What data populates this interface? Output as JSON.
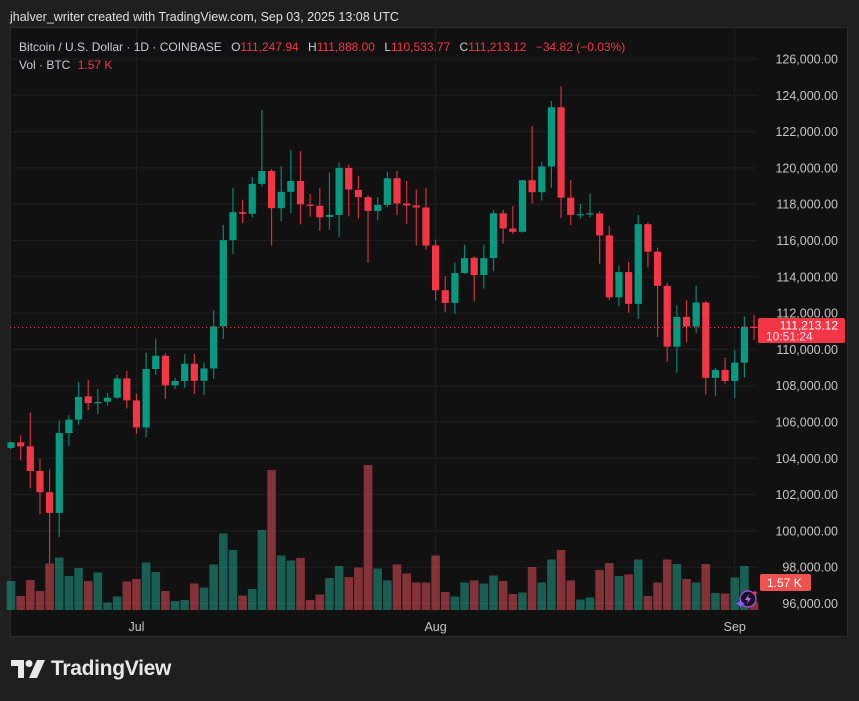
{
  "caption": "jhalver_writer created with TradingView.com, Sep 03, 2025 13:08 UTC",
  "legend": {
    "symbol": "Bitcoin / U.S. Dollar · 1D · COINBASE",
    "o_label": "O",
    "o_value": "111,247.94",
    "h_label": "H",
    "h_value": "111,888.00",
    "l_label": "L",
    "l_value": "110,533.77",
    "c_label": "C",
    "c_value": "111,213.12",
    "change": "−34.82 (−0.03%)",
    "vol_label": "Vol · BTC",
    "vol_value": "1.57 K"
  },
  "price_label": {
    "price": "111,213.12",
    "countdown": "10:51:24"
  },
  "volume_label": "1.57 K",
  "logo_text": "TradingView",
  "colors": {
    "up": "#089981",
    "down": "#f23645",
    "background": "#111111"
  },
  "icons": {
    "assistant": "lightning-sparkle-icon",
    "logo": "tradingview-logo-icon"
  },
  "chart_data": {
    "type": "candlestick",
    "title": "Bitcoin / U.S. Dollar · 1D · COINBASE",
    "y_ticks": [
      "126,000.00",
      "124,000.00",
      "122,000.00",
      "120,000.00",
      "118,000.00",
      "116,000.00",
      "114,000.00",
      "112,000.00",
      "110,000.00",
      "108,000.00",
      "106,000.00",
      "104,000.00",
      "102,000.00",
      "100,000.00",
      "98,000.00",
      "96,000.00"
    ],
    "x_ticks": [
      {
        "label": "Jul",
        "date": "2025-07-01"
      },
      {
        "label": "Aug",
        "date": "2025-08-01"
      },
      {
        "label": "Sep",
        "date": "2025-09-01"
      }
    ],
    "ylim": [
      96000,
      126000
    ],
    "current_price": 111213.12,
    "volume_unit": "K BTC",
    "columns": [
      "date",
      "open",
      "high",
      "low",
      "close",
      "volume"
    ],
    "candles": [
      [
        "2025-06-18",
        104570,
        104900,
        104500,
        104880,
        5.8
      ],
      [
        "2025-06-19",
        104880,
        105270,
        103890,
        104660,
        2.8
      ],
      [
        "2025-06-20",
        104660,
        106530,
        102350,
        103300,
        6.0
      ],
      [
        "2025-06-21",
        103300,
        103980,
        100920,
        102130,
        3.8
      ],
      [
        "2025-06-22",
        102130,
        103380,
        98200,
        100990,
        9.3
      ],
      [
        "2025-06-23",
        100990,
        106090,
        99670,
        105390,
        10.5
      ],
      [
        "2025-06-24",
        105390,
        106370,
        104680,
        106130,
        6.8
      ],
      [
        "2025-06-25",
        106130,
        108200,
        105850,
        107380,
        8.4
      ],
      [
        "2025-06-26",
        107410,
        108330,
        106640,
        107040,
        5.8
      ],
      [
        "2025-06-27",
        107030,
        107820,
        106440,
        107100,
        7.5
      ],
      [
        "2025-06-28",
        107120,
        107610,
        106900,
        107340,
        1.5
      ],
      [
        "2025-06-29",
        107340,
        108590,
        107270,
        108400,
        2.7
      ],
      [
        "2025-06-30",
        108400,
        108820,
        106750,
        107190,
        5.7
      ],
      [
        "2025-07-01",
        107190,
        107560,
        105340,
        105700,
        6.2
      ],
      [
        "2025-07-02",
        105700,
        109830,
        105150,
        108920,
        9.5
      ],
      [
        "2025-07-03",
        108920,
        110600,
        108600,
        109650,
        7.6
      ],
      [
        "2025-07-04",
        109650,
        109800,
        107280,
        108020,
        3.8
      ],
      [
        "2025-07-05",
        108020,
        108440,
        107830,
        108260,
        1.8
      ],
      [
        "2025-07-06",
        108260,
        109740,
        107890,
        109210,
        2.0
      ],
      [
        "2025-07-07",
        109210,
        109740,
        107540,
        108270,
        5.3
      ],
      [
        "2025-07-08",
        108270,
        109270,
        107490,
        108950,
        4.5
      ],
      [
        "2025-07-09",
        108950,
        112160,
        108370,
        111270,
        9.1
      ],
      [
        "2025-07-10",
        111270,
        116860,
        110570,
        116020,
        15.3
      ],
      [
        "2025-07-11",
        116020,
        118900,
        115250,
        117560,
        12.0
      ],
      [
        "2025-07-12",
        117560,
        118240,
        116950,
        117470,
        2.9
      ],
      [
        "2025-07-13",
        117470,
        119490,
        117270,
        119120,
        4.2
      ],
      [
        "2025-07-14",
        119120,
        123190,
        118970,
        119830,
        16.0
      ],
      [
        "2025-07-15",
        119830,
        119940,
        115710,
        117780,
        28.0
      ],
      [
        "2025-07-16",
        117780,
        120110,
        117050,
        118680,
        10.9
      ],
      [
        "2025-07-17",
        118680,
        120990,
        117490,
        119280,
        9.9
      ],
      [
        "2025-07-18",
        119280,
        120920,
        116900,
        118000,
        10.4
      ],
      [
        "2025-07-19",
        117980,
        118570,
        117320,
        117910,
        2.0
      ],
      [
        "2025-07-20",
        117910,
        118900,
        116530,
        117280,
        3.1
      ],
      [
        "2025-07-21",
        117300,
        119730,
        116590,
        117410,
        6.4
      ],
      [
        "2025-07-22",
        117410,
        120290,
        116180,
        120000,
        8.8
      ],
      [
        "2025-07-23",
        120000,
        120180,
        117340,
        118810,
        6.6
      ],
      [
        "2025-07-24",
        118790,
        119560,
        117210,
        118390,
        8.5
      ],
      [
        "2025-07-25",
        118390,
        118500,
        114770,
        117630,
        29.0
      ],
      [
        "2025-07-26",
        117630,
        118390,
        117120,
        117960,
        8.3
      ],
      [
        "2025-07-27",
        117960,
        119780,
        117830,
        119430,
        5.9
      ],
      [
        "2025-07-28",
        119430,
        119830,
        117390,
        118040,
        9.1
      ],
      [
        "2025-07-29",
        118040,
        119280,
        116920,
        117930,
        7.3
      ],
      [
        "2025-07-30",
        117930,
        118810,
        115720,
        117820,
        5.5
      ],
      [
        "2025-07-31",
        117820,
        118900,
        115500,
        115720,
        5.5
      ],
      [
        "2025-08-01",
        115730,
        116040,
        112690,
        113260,
        10.9
      ],
      [
        "2025-08-02",
        113260,
        114030,
        112050,
        112560,
        3.6
      ],
      [
        "2025-08-03",
        112560,
        114790,
        111940,
        114210,
        2.7
      ],
      [
        "2025-08-04",
        114210,
        115770,
        114150,
        115030,
        5.5
      ],
      [
        "2025-08-05",
        115050,
        115120,
        112650,
        114100,
        5.9
      ],
      [
        "2025-08-06",
        114100,
        115770,
        113350,
        115030,
        5.3
      ],
      [
        "2025-08-07",
        115030,
        117690,
        114300,
        117500,
        6.9
      ],
      [
        "2025-08-08",
        117500,
        117690,
        115820,
        116660,
        5.8
      ],
      [
        "2025-08-09",
        116660,
        117910,
        116350,
        116480,
        3.2
      ],
      [
        "2025-08-10",
        116480,
        119320,
        116440,
        119320,
        3.5
      ],
      [
        "2025-08-11",
        119320,
        122300,
        118030,
        118660,
        8.6
      ],
      [
        "2025-08-12",
        118660,
        120320,
        118200,
        120080,
        5.5
      ],
      [
        "2025-08-13",
        120080,
        123690,
        118910,
        123340,
        10.1
      ],
      [
        "2025-08-14",
        123340,
        124490,
        117230,
        118360,
        12.0
      ],
      [
        "2025-08-15",
        118360,
        119330,
        116860,
        117410,
        5.9
      ],
      [
        "2025-08-16",
        117430,
        118020,
        117210,
        117450,
        2.1
      ],
      [
        "2025-08-17",
        117470,
        118600,
        117270,
        117500,
        2.5
      ],
      [
        "2025-08-18",
        117490,
        117630,
        114720,
        116280,
        8.0
      ],
      [
        "2025-08-19",
        116280,
        116790,
        112710,
        112870,
        9.4
      ],
      [
        "2025-08-20",
        112870,
        114610,
        112380,
        114260,
        6.8
      ],
      [
        "2025-08-21",
        114260,
        114810,
        112020,
        112510,
        7.1
      ],
      [
        "2025-08-22",
        112510,
        117410,
        111680,
        116900,
        10.1
      ],
      [
        "2025-08-23",
        116900,
        116990,
        114520,
        115380,
        2.8
      ],
      [
        "2025-08-24",
        115380,
        115600,
        110680,
        113500,
        5.5
      ],
      [
        "2025-08-25",
        113500,
        113660,
        109310,
        110150,
        10.1
      ],
      [
        "2025-08-26",
        110150,
        112420,
        108720,
        111790,
        9.2
      ],
      [
        "2025-08-27",
        111790,
        112710,
        110380,
        111260,
        6.2
      ],
      [
        "2025-08-28",
        111260,
        113510,
        110920,
        112580,
        5.5
      ],
      [
        "2025-08-29",
        112580,
        112670,
        107510,
        108430,
        9.2
      ],
      [
        "2025-08-30",
        108430,
        108980,
        107440,
        108870,
        3.4
      ],
      [
        "2025-08-31",
        108870,
        109540,
        108100,
        108260,
        3.3
      ],
      [
        "2025-09-01",
        108260,
        109950,
        107310,
        109270,
        6.5
      ],
      [
        "2025-09-02",
        109270,
        111830,
        108450,
        111250,
        8.8
      ],
      [
        "2025-09-03",
        111247.94,
        111888.0,
        110533.77,
        111213.12,
        1.57
      ]
    ]
  }
}
